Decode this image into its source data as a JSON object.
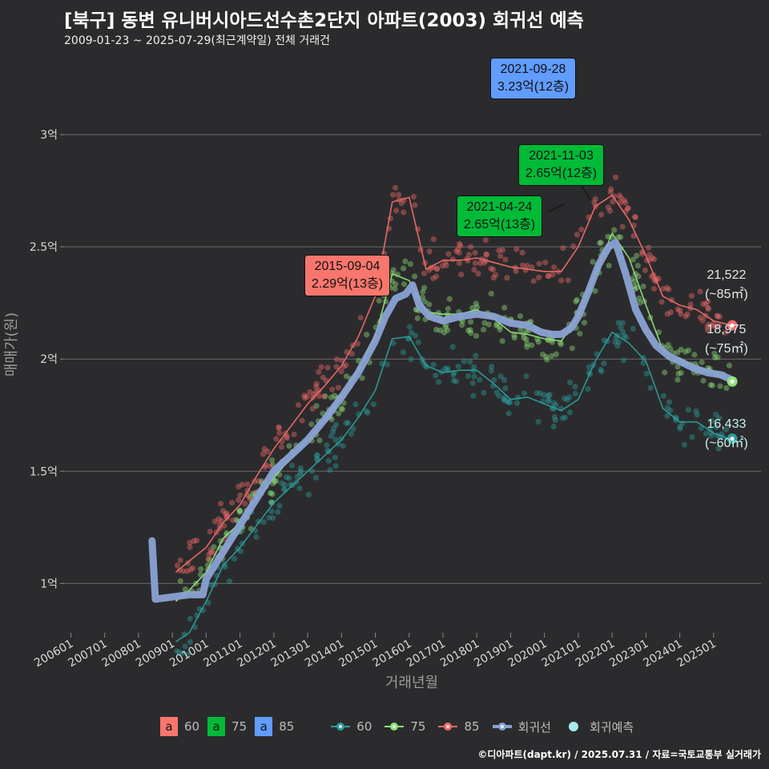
{
  "title": "[북구] 동변 유니버시아드선수촌2단지 아파트(2003) 회귀선 예측",
  "subtitle": "2009-01-23 ~ 2025-07-29(최근계약일) 전체 거래건",
  "footer": "©디아파트(dapt.kr) / 2025.07.31 / 자료=국토교통부 실거래가",
  "colors": {
    "background": "#2b2b2d",
    "s60": "#2a9d9a",
    "s75": "#8fe07a",
    "s85": "#f06a6a",
    "reg": "#8aa2d4",
    "pred": "#a8ecec",
    "ann85": "#f8766d",
    "ann75": "#00ba38",
    "annblue": "#619cff"
  },
  "chart_data": {
    "type": "scatter",
    "title": "[북구] 동변 유니버시아드선수촌2단지 아파트(2003) 회귀선 예측",
    "xlabel": "거래년월",
    "ylabel": "매매가(원)",
    "ylim": [
      0.78,
      3.35
    ],
    "xlim": [
      2005.8,
      2026.4
    ],
    "y_ticks": [
      {
        "value": 1.0,
        "label": "1억"
      },
      {
        "value": 1.5,
        "label": "1.5억"
      },
      {
        "value": 2.0,
        "label": "2억"
      },
      {
        "value": 2.5,
        "label": "2.5억"
      },
      {
        "value": 3.0,
        "label": "3억"
      }
    ],
    "x_ticks": [
      {
        "value": 2006.0,
        "label": "200601"
      },
      {
        "value": 2007.0,
        "label": "200701"
      },
      {
        "value": 2008.0,
        "label": "200801"
      },
      {
        "value": 2009.0,
        "label": "200901"
      },
      {
        "value": 2010.0,
        "label": "201001"
      },
      {
        "value": 2011.0,
        "label": "201101"
      },
      {
        "value": 2012.0,
        "label": "201201"
      },
      {
        "value": 2013.0,
        "label": "201301"
      },
      {
        "value": 2014.0,
        "label": "201401"
      },
      {
        "value": 2015.0,
        "label": "201501"
      },
      {
        "value": 2016.0,
        "label": "201601"
      },
      {
        "value": 2017.0,
        "label": "201701"
      },
      {
        "value": 2018.0,
        "label": "201801"
      },
      {
        "value": 2019.0,
        "label": "201901"
      },
      {
        "value": 2020.0,
        "label": "202001"
      },
      {
        "value": 2021.0,
        "label": "202101"
      },
      {
        "value": 2022.0,
        "label": "202201"
      },
      {
        "value": 2023.0,
        "label": "202301"
      },
      {
        "value": 2024.0,
        "label": "202401"
      },
      {
        "value": 2025.0,
        "label": "202501"
      }
    ],
    "series": [
      {
        "name": "60",
        "key": "s60",
        "x": [
          2009.1,
          2009.5,
          2010.0,
          2010.5,
          2011.0,
          2011.5,
          2012.0,
          2012.5,
          2013.0,
          2013.5,
          2014.0,
          2014.5,
          2015.0,
          2015.5,
          2016.0,
          2016.5,
          2017.0,
          2017.5,
          2018.0,
          2018.5,
          2019.0,
          2019.5,
          2020.0,
          2020.5,
          2021.0,
          2021.5,
          2022.0,
          2022.5,
          2023.0,
          2023.5,
          2024.0,
          2024.5,
          2025.0,
          2025.55
        ],
        "values": [
          0.74,
          0.78,
          0.92,
          1.08,
          1.16,
          1.26,
          1.36,
          1.43,
          1.5,
          1.57,
          1.64,
          1.74,
          1.86,
          2.09,
          2.1,
          1.97,
          1.94,
          1.95,
          1.95,
          1.89,
          1.82,
          1.83,
          1.8,
          1.77,
          1.82,
          1.99,
          2.12,
          2.07,
          1.99,
          1.78,
          1.72,
          1.72,
          1.67,
          1.64
        ]
      },
      {
        "name": "75",
        "key": "s75",
        "x": [
          2009.1,
          2009.5,
          2010.0,
          2010.5,
          2011.0,
          2011.5,
          2012.0,
          2012.5,
          2013.0,
          2013.5,
          2014.0,
          2014.5,
          2015.0,
          2015.5,
          2016.0,
          2016.5,
          2017.0,
          2017.5,
          2018.0,
          2018.5,
          2019.0,
          2019.5,
          2020.0,
          2020.5,
          2021.0,
          2021.5,
          2022.0,
          2022.5,
          2023.0,
          2023.5,
          2024.0,
          2024.5,
          2025.0,
          2025.55
        ],
        "values": [
          0.92,
          0.97,
          1.05,
          1.2,
          1.27,
          1.38,
          1.47,
          1.56,
          1.64,
          1.73,
          1.83,
          1.95,
          2.1,
          2.38,
          2.35,
          2.21,
          2.2,
          2.2,
          2.22,
          2.18,
          2.12,
          2.11,
          2.09,
          2.08,
          2.19,
          2.38,
          2.56,
          2.45,
          2.24,
          2.04,
          2.0,
          1.96,
          1.94,
          1.9
        ]
      },
      {
        "name": "85",
        "key": "s85",
        "x": [
          2009.1,
          2009.5,
          2010.0,
          2010.5,
          2011.0,
          2011.5,
          2012.0,
          2012.5,
          2013.0,
          2013.5,
          2014.0,
          2014.5,
          2015.0,
          2015.5,
          2016.0,
          2016.5,
          2017.0,
          2017.5,
          2018.0,
          2018.5,
          2019.0,
          2019.5,
          2020.0,
          2020.5,
          2021.0,
          2021.5,
          2022.0,
          2022.5,
          2023.0,
          2023.5,
          2024.0,
          2024.5,
          2025.0,
          2025.55
        ],
        "values": [
          1.05,
          1.1,
          1.16,
          1.27,
          1.35,
          1.48,
          1.6,
          1.7,
          1.8,
          1.88,
          1.97,
          2.1,
          2.28,
          2.7,
          2.72,
          2.4,
          2.44,
          2.44,
          2.45,
          2.43,
          2.41,
          2.4,
          2.39,
          2.39,
          2.5,
          2.68,
          2.73,
          2.62,
          2.46,
          2.28,
          2.24,
          2.22,
          2.17,
          2.15
        ]
      },
      {
        "name": "회귀선",
        "key": "reg",
        "x": [
          2008.4,
          2008.5,
          2009.0,
          2009.5,
          2009.9,
          2010.0,
          2010.5,
          2011.0,
          2011.5,
          2012.0,
          2012.5,
          2013.0,
          2013.5,
          2014.0,
          2014.5,
          2015.0,
          2015.3,
          2015.6,
          2015.9,
          2016.1,
          2016.3,
          2016.6,
          2017.0,
          2017.5,
          2018.0,
          2018.5,
          2019.0,
          2019.5,
          2019.9,
          2020.2,
          2020.5,
          2020.8,
          2021.0,
          2021.3,
          2021.6,
          2021.9,
          2022.1,
          2022.4,
          2022.7,
          2023.0,
          2023.3,
          2023.7,
          2024.0,
          2024.4,
          2024.8,
          2025.2,
          2025.5
        ],
        "values": [
          1.19,
          0.93,
          0.94,
          0.95,
          0.95,
          1.02,
          1.14,
          1.26,
          1.38,
          1.5,
          1.57,
          1.64,
          1.73,
          1.83,
          1.94,
          2.08,
          2.19,
          2.27,
          2.29,
          2.33,
          2.24,
          2.19,
          2.17,
          2.19,
          2.2,
          2.19,
          2.16,
          2.15,
          2.12,
          2.11,
          2.11,
          2.14,
          2.19,
          2.3,
          2.42,
          2.5,
          2.52,
          2.38,
          2.22,
          2.13,
          2.06,
          2.01,
          1.99,
          1.96,
          1.94,
          1.93,
          1.91
        ]
      }
    ],
    "end_points": [
      {
        "key": "s85",
        "x": 2025.55,
        "y": 2.15
      },
      {
        "key": "s75",
        "x": 2025.55,
        "y": 1.9
      },
      {
        "key": "s60",
        "x": 2025.55,
        "y": 1.645
      }
    ],
    "end_labels": [
      {
        "key": "s85",
        "line1": "21,522",
        "line2": "(~85㎡)"
      },
      {
        "key": "s75",
        "line1": "18,975",
        "line2": "(~75㎡)"
      },
      {
        "key": "s60",
        "line1": "16,433",
        "line2": "(~60㎡)"
      }
    ],
    "annotations": [
      {
        "key": "ann85",
        "date": "2015-09-04",
        "text": "2.29억(13층)"
      },
      {
        "key": "ann75",
        "date": "2021-04-24",
        "text": "2.65억(13층)"
      },
      {
        "key": "ann75",
        "date": "2021-11-03",
        "text": "2.65억(12층)"
      },
      {
        "key": "annblue",
        "date": "2021-09-28",
        "text": "3.23억(12층)"
      }
    ],
    "legend": {
      "boxes": [
        {
          "letter": "a",
          "label": "60",
          "key": "ann85"
        },
        {
          "letter": "a",
          "label": "75",
          "key": "ann75"
        },
        {
          "letter": "a",
          "label": "85",
          "key": "annblue"
        }
      ],
      "lines": [
        {
          "label": "60",
          "key": "s60"
        },
        {
          "label": "75",
          "key": "s75"
        },
        {
          "label": "85",
          "key": "s85"
        },
        {
          "label": "회귀선",
          "key": "reg"
        },
        {
          "label": "회귀예측",
          "key": "pred"
        }
      ]
    }
  }
}
